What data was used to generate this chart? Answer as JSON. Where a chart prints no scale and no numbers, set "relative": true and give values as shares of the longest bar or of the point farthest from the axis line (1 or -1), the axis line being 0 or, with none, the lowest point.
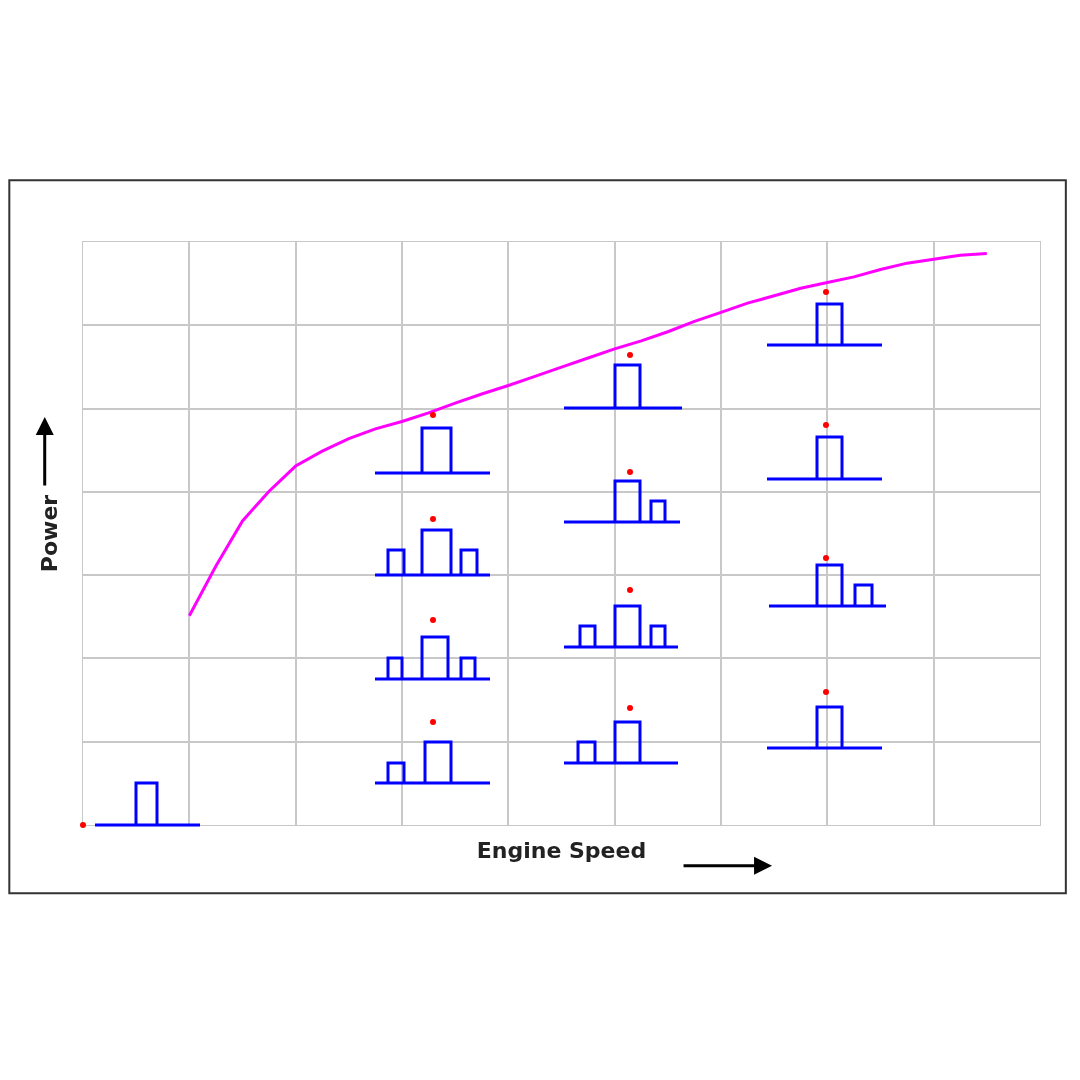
{
  "chart_data": {
    "type": "line",
    "xlabel": "Engine Speed",
    "ylabel": "Power",
    "relative": true,
    "grid": true,
    "categories": [
      null,
      null,
      null,
      null,
      null,
      null,
      null,
      null,
      null,
      null,
      null,
      null,
      null,
      null,
      null,
      null,
      null,
      null,
      null,
      null,
      null,
      null,
      null,
      null,
      null,
      null,
      null,
      null,
      null,
      null,
      null,
      null,
      null,
      null,
      null,
      null,
      null
    ],
    "series": [
      {
        "color": "#ff00ff",
        "values": [
          null,
          null,
          null,
          null,
          0.366,
          0.453,
          0.532,
          0.584,
          0.628,
          0.654,
          0.676,
          0.693,
          0.706,
          0.721,
          0.738,
          0.754,
          0.769,
          0.785,
          0.801,
          0.817,
          0.833,
          0.847,
          0.863,
          0.881,
          0.897,
          0.913,
          0.926,
          0.939,
          0.949,
          0.959,
          0.972,
          0.983,
          0.99,
          0.997,
          1,
          null,
          null
        ]
      }
    ]
  }
}
